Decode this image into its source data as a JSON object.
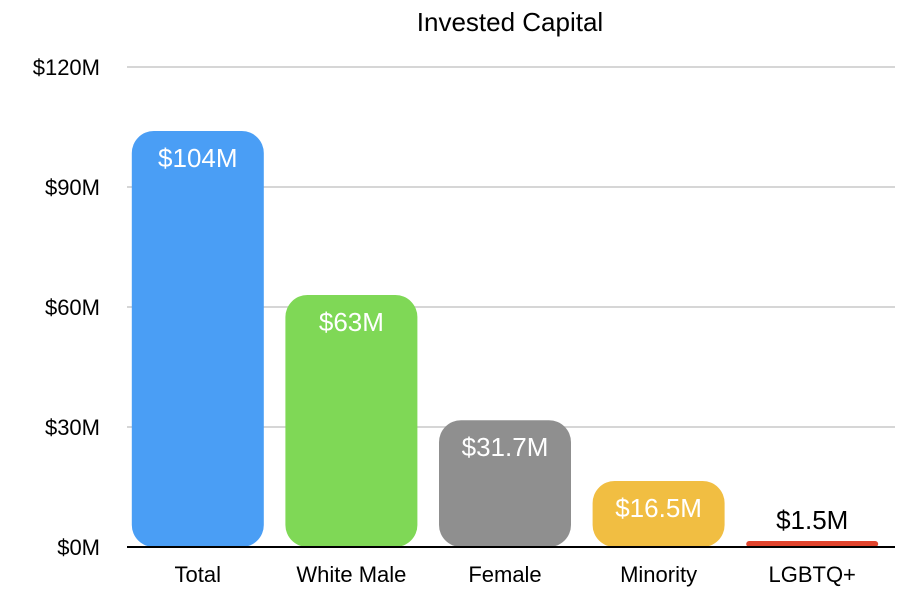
{
  "chart_data": {
    "type": "bar",
    "title": "Invested Capital",
    "xlabel": "",
    "ylabel": "",
    "categories": [
      "Total",
      "White Male",
      "Female",
      "Minority",
      "LGBTQ+"
    ],
    "values": [
      104,
      63,
      31.7,
      16.5,
      1.5
    ],
    "value_labels": [
      "$104M",
      "$63M",
      "$31.7M",
      "$16.5M",
      "$1.5M"
    ],
    "colors": [
      "#4a9ef5",
      "#7fd856",
      "#8f8f8f",
      "#f1be42",
      "#e1442d"
    ],
    "ylim": [
      0,
      120
    ],
    "yticks": [
      0,
      30,
      60,
      90,
      120
    ],
    "ytick_labels": [
      "$0M",
      "$30M",
      "$60M",
      "$90M",
      "$120M"
    ],
    "grid": true,
    "legend": "none"
  }
}
